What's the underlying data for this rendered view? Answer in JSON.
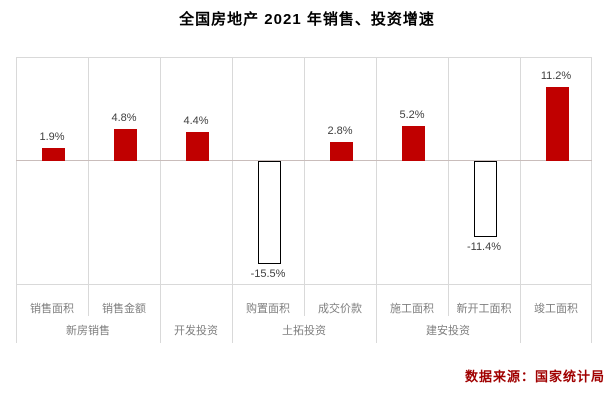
{
  "title": "全国房地产 2021 年销售、投资增速",
  "source_note": "数据来源：国家统计局",
  "colors": {
    "bar_positive": "#C00000",
    "bar_negative_fill": "#FFFFFF",
    "bar_negative_border": "#000000",
    "gridline": "#D9D9D9",
    "zero_line": "#C9BDBB",
    "value_label": "#404040",
    "category_label": "#7F7F7F",
    "title_color": "#000000",
    "source_color": "#A00000"
  },
  "chart_data": {
    "type": "bar",
    "title": "全国房地产 2021 年销售、投资增速",
    "unit": "%",
    "ylim": [
      -18,
      15.5
    ],
    "grid": "vertical-category-separators",
    "zero_baseline": true,
    "legend": "none",
    "bars": [
      {
        "category": "销售面积",
        "group": "新房销售",
        "value": 1.9,
        "label": "1.9%",
        "style": "filled"
      },
      {
        "category": "销售金额",
        "group": "新房销售",
        "value": 4.8,
        "label": "4.8%",
        "style": "filled"
      },
      {
        "category": "",
        "group": "开发投资",
        "value": 4.4,
        "label": "4.4%",
        "style": "filled"
      },
      {
        "category": "购置面积",
        "group": "土拓投资",
        "value": -15.5,
        "label": "-15.5%",
        "style": "outline"
      },
      {
        "category": "成交价款",
        "group": "土拓投资",
        "value": 2.8,
        "label": "2.8%",
        "style": "filled"
      },
      {
        "category": "施工面积",
        "group": "建安投资",
        "value": 5.2,
        "label": "5.2%",
        "style": "filled"
      },
      {
        "category": "新开工面积",
        "group": "建安投资",
        "value": -11.4,
        "label": "-11.4%",
        "style": "outline"
      },
      {
        "category": "竣工面积",
        "group": "",
        "value": 11.2,
        "label": "11.2%",
        "style": "filled"
      }
    ],
    "groups": [
      {
        "label": "新房销售",
        "start": 0,
        "span": 2
      },
      {
        "label": "开发投资",
        "start": 2,
        "span": 1
      },
      {
        "label": "土拓投资",
        "start": 3,
        "span": 2
      },
      {
        "label": "建安投资",
        "start": 5,
        "span": 2
      },
      {
        "label": "",
        "start": 7,
        "span": 1
      }
    ]
  }
}
